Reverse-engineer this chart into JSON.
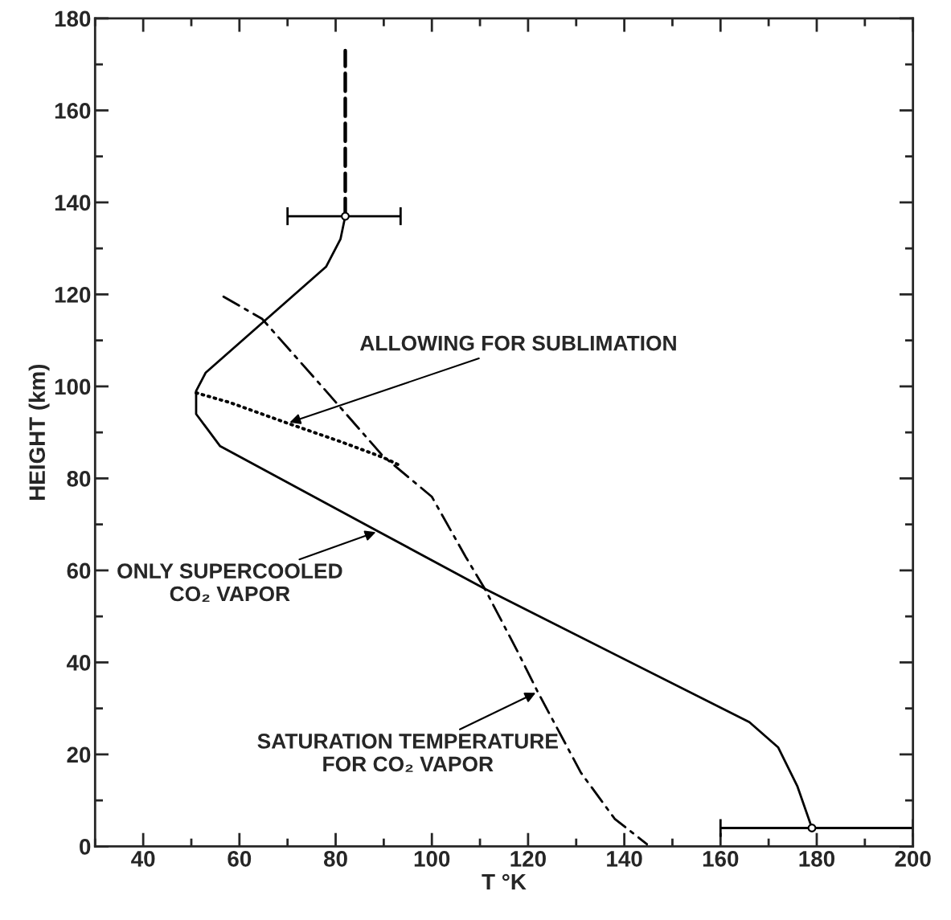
{
  "chart_data": {
    "type": "line",
    "xlabel": "T °K",
    "ylabel": "HEIGHT (km)",
    "xlim": [
      30,
      200
    ],
    "ylim": [
      0,
      180
    ],
    "xticks": [
      40,
      60,
      80,
      100,
      120,
      140,
      160,
      180,
      200
    ],
    "yticks": [
      0,
      20,
      40,
      60,
      80,
      100,
      120,
      140,
      160,
      180
    ],
    "grid": false,
    "legend": false,
    "series": [
      {
        "line_style": "solid",
        "color": "#000000",
        "x": [
          179,
          176,
          172,
          166,
          111,
          88.8,
          56,
          51,
          51,
          53,
          78,
          81,
          82
        ],
        "values": [
          4,
          13,
          21.5,
          27,
          56,
          68.5,
          87,
          94,
          99,
          103,
          126,
          132,
          137
        ]
      },
      {
        "line_style": "dashed",
        "color": "#000000",
        "x": [
          82,
          82
        ],
        "values": [
          137,
          173
        ]
      },
      {
        "line_style": "dashdot",
        "color": "#000000",
        "x": [
          56.7,
          64.7,
          78,
          89.7,
          100,
          107,
          111,
          118,
          122,
          131,
          138,
          144.7
        ],
        "values": [
          119.5,
          114.7,
          99,
          85,
          76,
          63,
          56,
          42,
          33.6,
          16,
          6,
          0.5
        ]
      },
      {
        "line_style": "dotted",
        "color": "#000000",
        "x": [
          51,
          58,
          70,
          81,
          90,
          93
        ],
        "values": [
          98.6,
          96.5,
          92,
          88,
          84.5,
          83
        ]
      },
      {
        "type": "scatter",
        "marker": "circle",
        "color": "#000000",
        "x": [
          82,
          179
        ],
        "values": [
          137,
          4
        ],
        "xerrors": [
          [
            70,
            93.5
          ],
          [
            160,
            200
          ]
        ]
      }
    ],
    "annotations": [
      {
        "text": "ALLOWING FOR SUBLIMATION",
        "x": 70,
        "y": 92
      },
      {
        "text": "ONLY SUPERCOOLED\nCO₂ VAPOR",
        "x": 88.8,
        "y": 68.5
      },
      {
        "text": "SATURATION TEMPERATURE\nFOR CO₂ VAPOR",
        "x": 122,
        "y": 33.6
      }
    ]
  }
}
